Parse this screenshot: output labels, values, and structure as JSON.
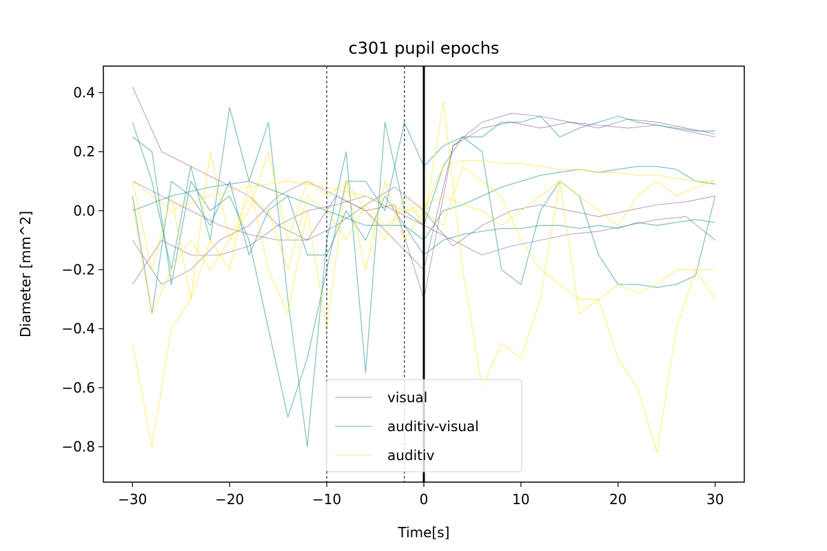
{
  "chart_data": {
    "type": "line",
    "title": "c301 pupil epochs",
    "xlabel": "Time[s]",
    "ylabel": "Diameter [mm^2]",
    "xlim": [
      -33,
      33
    ],
    "ylim": [
      -0.92,
      0.49
    ],
    "xticks": [
      -30,
      -20,
      -10,
      0,
      10,
      20,
      30
    ],
    "xtick_labels": [
      "−30",
      "−20",
      "−10",
      "0",
      "10",
      "20",
      "30"
    ],
    "yticks": [
      0.4,
      0.2,
      0.0,
      -0.2,
      -0.4,
      -0.6,
      -0.8
    ],
    "ytick_labels": [
      "0.4",
      "0.2",
      "0.0",
      "−0.2",
      "−0.4",
      "−0.6",
      "−0.8"
    ],
    "grid": false,
    "legend_position": "lower-center",
    "vlines": [
      {
        "x": -10,
        "style": "dashed",
        "color": "#000000"
      },
      {
        "x": -2,
        "style": "dashed",
        "color": "#000000"
      },
      {
        "x": 0,
        "style": "solid",
        "color": "#000000"
      }
    ],
    "series": [
      {
        "name": "visual",
        "color": "#440154",
        "group": "visual",
        "x": [
          -30,
          -27,
          -24,
          -21,
          -18,
          -15,
          -12,
          -9,
          -6,
          -3,
          0,
          3,
          6,
          9,
          12,
          15,
          18,
          21,
          24,
          27,
          30
        ],
        "y": [
          0.42,
          0.2,
          0.15,
          0.1,
          0.05,
          -0.05,
          -0.1,
          0.05,
          0.0,
          -0.1,
          -0.2,
          0.22,
          0.3,
          0.33,
          0.32,
          0.3,
          0.28,
          0.31,
          0.3,
          0.28,
          0.26
        ]
      },
      {
        "name": "",
        "color": "#440154",
        "group": "visual",
        "x": [
          -30,
          -27,
          -24,
          -21,
          -18,
          -15,
          -12,
          -9,
          -6,
          -3,
          0,
          3,
          6,
          9,
          12,
          15,
          18,
          21,
          24,
          27,
          30
        ],
        "y": [
          -0.1,
          -0.25,
          -0.2,
          -0.1,
          -0.05,
          0.05,
          0.1,
          0.05,
          0.0,
          0.02,
          -0.3,
          0.22,
          0.28,
          0.3,
          0.28,
          0.3,
          0.29,
          0.28,
          0.29,
          0.27,
          0.25
        ]
      },
      {
        "name": "",
        "color": "#440154",
        "group": "visual",
        "x": [
          -30,
          -27,
          -24,
          -21,
          -18,
          -15,
          -12,
          -9,
          -6,
          -3,
          0,
          3,
          6,
          9,
          12,
          15,
          18,
          21,
          24,
          27,
          30
        ],
        "y": [
          0.1,
          0.05,
          0.0,
          -0.05,
          -0.08,
          -0.1,
          -0.1,
          -0.05,
          0.02,
          0.08,
          0.0,
          -0.12,
          -0.05,
          0.0,
          0.02,
          0.0,
          -0.02,
          0.0,
          0.02,
          0.03,
          0.05
        ]
      },
      {
        "name": "",
        "color": "#440154",
        "group": "visual",
        "x": [
          -30,
          -27,
          -24,
          -21,
          -18,
          -15,
          -12,
          -9,
          -6,
          -3,
          0,
          3,
          6,
          9,
          12,
          15,
          18,
          21,
          24,
          27,
          30
        ],
        "y": [
          -0.25,
          -0.1,
          -0.15,
          -0.15,
          -0.12,
          -0.05,
          0.0,
          0.02,
          0.05,
          0.0,
          -0.05,
          -0.1,
          -0.15,
          -0.12,
          -0.1,
          -0.08,
          -0.07,
          -0.05,
          -0.03,
          -0.02,
          -0.1
        ]
      },
      {
        "name": "auditiv-visual",
        "color": "#21918c",
        "group": "auditiv-visual",
        "x": [
          -30,
          -28,
          -26,
          -24,
          -22,
          -20,
          -18,
          -16,
          -14,
          -12,
          -10,
          -8,
          -6,
          -4,
          -2,
          0,
          2,
          4,
          6,
          8,
          10,
          12,
          14,
          16,
          18,
          20,
          22,
          24,
          26,
          28,
          30
        ],
        "y": [
          0.3,
          0.1,
          -0.2,
          0.15,
          -0.1,
          0.35,
          0.1,
          0.3,
          -0.3,
          -0.8,
          -0.1,
          0.2,
          -0.55,
          0.3,
          0.0,
          -0.05,
          0.15,
          0.25,
          0.2,
          -0.2,
          -0.25,
          0.0,
          0.1,
          0.05,
          -0.15,
          -0.25,
          -0.25,
          -0.26,
          -0.25,
          -0.22,
          0.05
        ]
      },
      {
        "name": "",
        "color": "#21918c",
        "group": "auditiv-visual",
        "x": [
          -30,
          -28,
          -26,
          -24,
          -22,
          -20,
          -18,
          -16,
          -14,
          -12,
          -10,
          -8,
          -6,
          -4,
          -2,
          0,
          2,
          4,
          6,
          8,
          10,
          12,
          14,
          16,
          18,
          20,
          22,
          24,
          26,
          28,
          30
        ],
        "y": [
          0.25,
          0.2,
          -0.25,
          0.1,
          0.0,
          0.05,
          -0.1,
          -0.4,
          -0.7,
          -0.5,
          -0.2,
          0.1,
          0.1,
          0.0,
          0.3,
          0.15,
          0.22,
          0.25,
          0.25,
          0.3,
          0.3,
          0.32,
          0.25,
          0.28,
          0.3,
          0.32,
          0.3,
          0.29,
          0.28,
          0.27,
          0.27
        ]
      },
      {
        "name": "",
        "color": "#21918c",
        "group": "auditiv-visual",
        "x": [
          -30,
          -28,
          -26,
          -24,
          -22,
          -20,
          -18,
          -16,
          -14,
          -12,
          -10,
          -8,
          -6,
          -4,
          -2,
          0,
          2,
          4,
          6,
          8,
          10,
          12,
          14,
          16,
          18,
          20,
          22,
          24,
          26,
          28,
          30
        ],
        "y": [
          0.05,
          -0.35,
          0.1,
          0.05,
          -0.05,
          0.1,
          -0.15,
          0.0,
          0.05,
          -0.15,
          -0.15,
          0.0,
          -0.1,
          0.05,
          -0.05,
          -0.1,
          0.0,
          0.02,
          0.05,
          0.08,
          0.1,
          0.12,
          0.13,
          0.14,
          0.13,
          0.14,
          0.15,
          0.15,
          0.14,
          0.1,
          0.09
        ]
      },
      {
        "name": "",
        "color": "#21918c",
        "group": "auditiv-visual",
        "x": [
          -30,
          -26,
          -22,
          -18,
          -14,
          -10,
          -6,
          -2,
          0,
          2,
          4,
          6,
          8,
          10,
          12,
          14,
          16,
          18,
          20,
          22,
          24,
          26,
          28,
          30
        ],
        "y": [
          0.0,
          0.05,
          0.08,
          0.1,
          0.05,
          0.0,
          -0.05,
          -0.05,
          -0.15,
          -0.1,
          -0.08,
          -0.07,
          -0.06,
          -0.06,
          -0.05,
          -0.05,
          -0.06,
          -0.05,
          -0.06,
          -0.04,
          -0.05,
          -0.04,
          -0.03,
          -0.04
        ]
      },
      {
        "name": "auditiv",
        "color": "#fde725",
        "group": "auditiv",
        "x": [
          -30,
          -28,
          -26,
          -24,
          -22,
          -20,
          -18,
          -16,
          -14,
          -12,
          -10,
          -8,
          -6,
          -4,
          -2,
          0,
          2,
          4,
          6,
          8,
          10,
          12,
          14,
          16,
          18,
          20,
          22,
          24,
          26,
          28,
          30
        ],
        "y": [
          -0.45,
          -0.8,
          -0.4,
          -0.3,
          -0.1,
          -0.2,
          0.1,
          -0.2,
          -0.35,
          0.0,
          -0.4,
          0.1,
          0.0,
          -0.1,
          0.05,
          -0.05,
          0.37,
          -0.2,
          -0.6,
          -0.45,
          -0.5,
          -0.3,
          0.1,
          -0.35,
          -0.3,
          -0.5,
          -0.6,
          -0.82,
          -0.4,
          -0.2,
          -0.3
        ]
      },
      {
        "name": "",
        "color": "#fde725",
        "group": "auditiv",
        "x": [
          -30,
          -28,
          -26,
          -24,
          -22,
          -20,
          -18,
          -16,
          -14,
          -12,
          -10,
          -8,
          -6,
          -4,
          -2,
          0,
          2,
          4,
          6,
          8,
          10,
          12,
          14,
          16,
          18,
          20,
          22,
          24,
          26,
          28,
          30
        ],
        "y": [
          0.1,
          -0.2,
          0.05,
          -0.3,
          0.2,
          -0.1,
          0.0,
          0.2,
          -0.1,
          0.1,
          0.05,
          0.1,
          -0.2,
          0.1,
          -0.1,
          0.0,
          0.15,
          0.17,
          0.17,
          0.16,
          0.16,
          0.15,
          0.14,
          0.14,
          0.13,
          0.13,
          0.12,
          0.12,
          0.11,
          0.1,
          0.1
        ]
      },
      {
        "name": "",
        "color": "#fde725",
        "group": "auditiv",
        "x": [
          -30,
          -28,
          -26,
          -24,
          -22,
          -20,
          -18,
          -16,
          -14,
          -12,
          -10,
          -8,
          -6,
          -4,
          -2,
          0,
          2,
          4,
          6,
          8,
          10,
          12,
          14,
          16,
          18,
          20,
          22,
          24,
          26,
          28,
          30
        ],
        "y": [
          0.02,
          -0.35,
          -0.2,
          -0.1,
          -0.2,
          -0.1,
          0.05,
          0.0,
          -0.2,
          0.05,
          0.0,
          -0.1,
          0.02,
          -0.05,
          0.0,
          0.0,
          -0.05,
          0.15,
          0.1,
          0.05,
          -0.1,
          -0.2,
          -0.25,
          -0.3,
          -0.3,
          -0.25,
          -0.28,
          -0.25,
          -0.2,
          -0.2,
          -0.2
        ]
      },
      {
        "name": "",
        "color": "#fde725",
        "group": "auditiv",
        "x": [
          -30,
          -26,
          -22,
          -18,
          -14,
          -10,
          -6,
          -2,
          0,
          2,
          4,
          6,
          8,
          10,
          12,
          14,
          16,
          18,
          20,
          22,
          24,
          26,
          28,
          30
        ],
        "y": [
          0.1,
          0.0,
          0.05,
          0.08,
          0.1,
          0.08,
          0.05,
          0.0,
          0.02,
          0.05,
          0.02,
          0.0,
          -0.05,
          0.0,
          0.05,
          0.1,
          0.05,
          0.0,
          -0.05,
          0.05,
          0.1,
          0.05,
          0.08,
          0.1
        ]
      }
    ]
  }
}
